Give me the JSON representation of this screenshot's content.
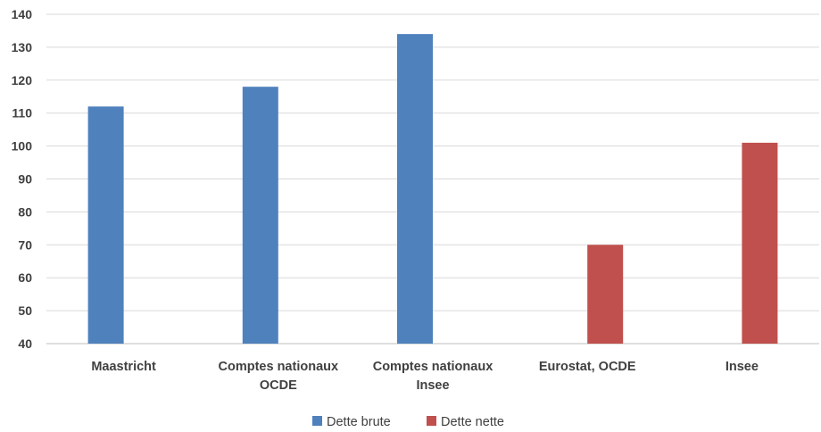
{
  "chart_data": {
    "type": "bar",
    "categories": [
      [
        "Maastricht"
      ],
      [
        "Comptes nationaux",
        "OCDE"
      ],
      [
        "Comptes nationaux",
        "Insee"
      ],
      [
        "Eurostat, OCDE"
      ],
      [
        "Insee"
      ]
    ],
    "series": [
      {
        "name": "Dette brute",
        "color": "#4f81bd",
        "values": [
          112,
          118,
          134,
          null,
          null
        ]
      },
      {
        "name": "Dette  nette",
        "color": "#c0504d",
        "values": [
          null,
          null,
          null,
          70,
          101
        ]
      }
    ],
    "ylim": [
      40,
      140
    ],
    "yticks": [
      40,
      50,
      60,
      70,
      80,
      90,
      100,
      110,
      120,
      130,
      140
    ],
    "grid": true,
    "legend_position": "bottom",
    "title": "",
    "xlabel": "",
    "ylabel": ""
  }
}
